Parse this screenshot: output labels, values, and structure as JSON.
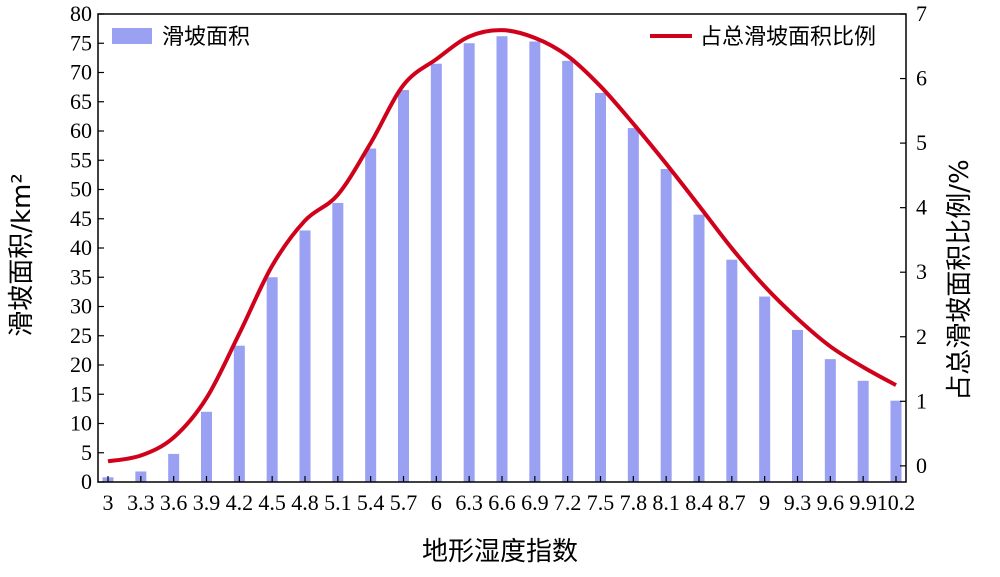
{
  "chart_data": {
    "type": "bar+line",
    "categories": [
      "3",
      "3.3",
      "3.6",
      "3.9",
      "4.2",
      "4.5",
      "4.8",
      "5.1",
      "5.4",
      "5.7",
      "6",
      "6.3",
      "6.6",
      "6.9",
      "7.2",
      "7.5",
      "7.8",
      "8.1",
      "8.4",
      "8.7",
      "9",
      "9.3",
      "9.6",
      "9.9",
      "10.2"
    ],
    "series": [
      {
        "name": "滑坡面积",
        "type": "bar",
        "axis": "left",
        "color": "#9aa0f2",
        "values": [
          0.8,
          1.8,
          4.8,
          12.0,
          23.3,
          35.0,
          43.0,
          47.7,
          57.0,
          67.0,
          71.5,
          75.0,
          76.2,
          75.3,
          72.0,
          66.5,
          60.5,
          53.5,
          45.7,
          38.0,
          31.7,
          26.0,
          21.0,
          17.3,
          13.9
        ]
      },
      {
        "name": "占总滑坡面积比例",
        "type": "line",
        "axis": "right",
        "color": "#d0021b",
        "values": [
          0.07,
          0.16,
          0.44,
          1.05,
          2.05,
          3.1,
          3.8,
          4.2,
          5.0,
          5.9,
          6.3,
          6.65,
          6.75,
          6.63,
          6.35,
          5.88,
          5.3,
          4.68,
          4.03,
          3.37,
          2.78,
          2.28,
          1.85,
          1.53,
          1.25
        ]
      }
    ],
    "xlabel": "地形湿度指数",
    "ylabel_left": "滑坡面积/km²",
    "ylabel_right": "占总滑坡面积比例/%",
    "ylim_left": [
      0,
      80
    ],
    "ylim_right": [
      -0.25,
      7
    ],
    "yticks_left": [
      0,
      5,
      10,
      15,
      20,
      25,
      30,
      35,
      40,
      45,
      50,
      55,
      60,
      65,
      70,
      75,
      80
    ],
    "yticks_right": [
      0,
      1,
      2,
      3,
      4,
      5,
      6,
      7
    ],
    "grid": false,
    "legend": [
      {
        "label": "滑坡面积",
        "placement": "top-left"
      },
      {
        "label": "占总滑坡面积比例",
        "placement": "top-right"
      }
    ]
  }
}
